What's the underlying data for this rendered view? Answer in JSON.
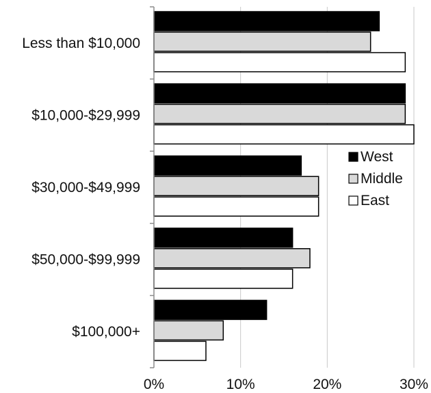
{
  "chart_data": {
    "type": "bar",
    "orientation": "horizontal",
    "categories": [
      "Less than $10,000",
      "$10,000-$29,999",
      "$30,000-$49,999",
      "$50,000-$99,999",
      "$100,000+"
    ],
    "series": [
      {
        "name": "West",
        "color": "#000000",
        "values": [
          26,
          29,
          17,
          16,
          13
        ]
      },
      {
        "name": "Middle",
        "color": "#d9d9d9",
        "values": [
          25,
          29,
          19,
          18,
          8
        ]
      },
      {
        "name": "East",
        "color": "#ffffff",
        "values": [
          29,
          30,
          19,
          16,
          6
        ]
      }
    ],
    "x_ticks": [
      "0%",
      "10%",
      "20%",
      "30%"
    ],
    "xlim": [
      0,
      30
    ],
    "grid": true,
    "legend_position": "right",
    "title": "",
    "xlabel": "",
    "ylabel": ""
  }
}
